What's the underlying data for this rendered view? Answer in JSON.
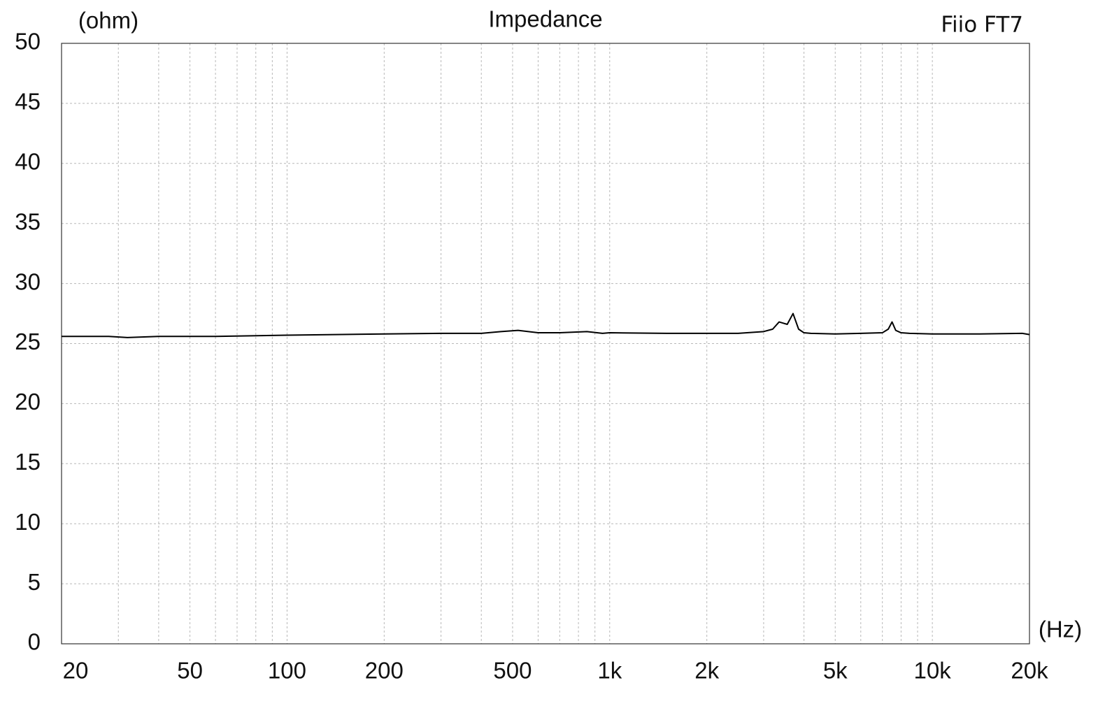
{
  "chart_data": {
    "type": "line",
    "title": "Impedance",
    "subtitle": "Fiio FT7",
    "y_label": "(ohm)",
    "x_label": "(Hz)",
    "xscale": "log",
    "grid": true,
    "color": "#000000",
    "xlim": [
      20,
      20000
    ],
    "ylim": [
      0,
      50
    ],
    "yticks": [
      0,
      5,
      10,
      15,
      20,
      25,
      30,
      35,
      40,
      45,
      50
    ],
    "xticks": [
      20,
      50,
      100,
      200,
      500,
      {
        "value": 1000,
        "label": "1k"
      },
      {
        "value": 2000,
        "label": "2k"
      },
      {
        "value": 5000,
        "label": "5k"
      },
      {
        "value": 10000,
        "label": "10k"
      },
      {
        "value": 20000,
        "label": "20k"
      }
    ],
    "xgrid": [
      30,
      40,
      60,
      70,
      80,
      90,
      300,
      400,
      600,
      700,
      800,
      900,
      3000,
      4000,
      6000,
      7000,
      8000,
      9000
    ],
    "x": [
      20,
      28,
      32,
      40,
      60,
      100,
      200,
      300,
      400,
      460,
      520,
      600,
      700,
      850,
      950,
      1000,
      1500,
      2000,
      2500,
      3000,
      3200,
      3350,
      3450,
      3550,
      3700,
      3850,
      4000,
      4200,
      5000,
      6000,
      7000,
      7300,
      7500,
      7700,
      8000,
      8500,
      10000,
      14000,
      19000,
      20000
    ],
    "values": [
      25.6,
      25.6,
      25.5,
      25.6,
      25.6,
      25.7,
      25.8,
      25.85,
      25.85,
      26.0,
      26.1,
      25.9,
      25.9,
      26.0,
      25.85,
      25.9,
      25.85,
      25.85,
      25.85,
      26.0,
      26.2,
      26.8,
      26.7,
      26.6,
      27.5,
      26.2,
      25.9,
      25.85,
      25.8,
      25.85,
      25.9,
      26.2,
      26.8,
      26.1,
      25.9,
      25.85,
      25.8,
      25.8,
      25.85,
      25.75
    ]
  }
}
